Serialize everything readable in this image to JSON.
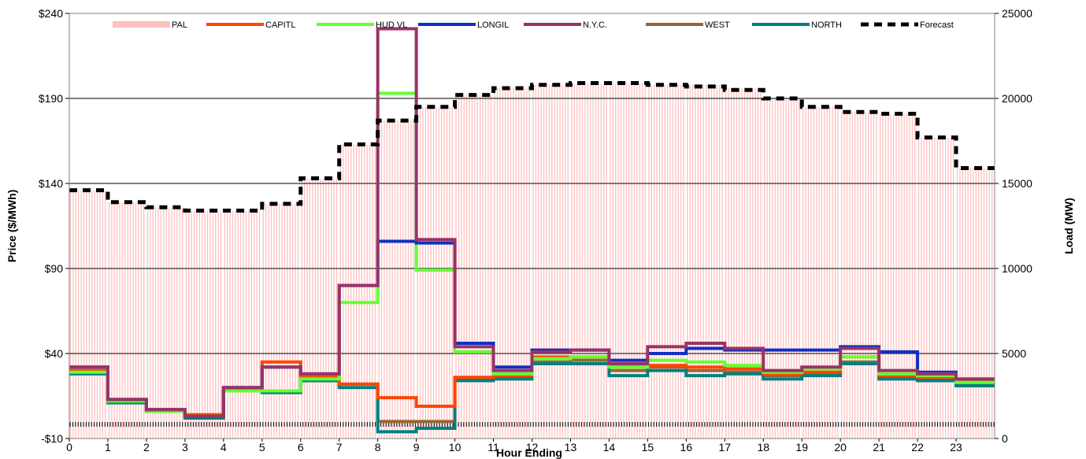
{
  "chart_data": {
    "type": "line",
    "xlabel": "Hour Ending",
    "ylabel_left": "Price ($/MWh)",
    "ylabel_right": "Load (MW)",
    "ylim_left": [
      -10,
      240
    ],
    "ylim_right": [
      0,
      25000
    ],
    "yticks_left": [
      "$240",
      "$190",
      "$140",
      "$90",
      "$40",
      "-$10"
    ],
    "yticks_right": [
      "25000",
      "20000",
      "15000",
      "10000",
      "5000",
      "0"
    ],
    "x_tick_labels": [
      "0",
      "1",
      "2",
      "3",
      "4",
      "5",
      "6",
      "7",
      "8",
      "9",
      "10",
      "11",
      "12",
      "13",
      "14",
      "15",
      "16",
      "17",
      "18",
      "19",
      "20",
      "21",
      "22",
      "23"
    ],
    "grid": "horizontal",
    "legend_position": "top",
    "hours": [
      0,
      1,
      2,
      3,
      4,
      5,
      6,
      7,
      8,
      9,
      10,
      11,
      12,
      13,
      14,
      15,
      16,
      17,
      18,
      19,
      20,
      21,
      22,
      23
    ],
    "series": [
      {
        "name": "PAL",
        "axis": "right",
        "style": "bars",
        "color": "#ffc0c0",
        "values": [
          14600,
          13900,
          13600,
          13400,
          13400,
          13800,
          15300,
          17300,
          18700,
          19500,
          20200,
          20600,
          20800,
          20900,
          20900,
          20800,
          20800,
          20600,
          20000,
          19500,
          19200,
          19100,
          17700,
          15900
        ]
      },
      {
        "name": "CAPITL",
        "axis": "left",
        "color": "#ff4500",
        "values": [
          30,
          13,
          7,
          4,
          19,
          35,
          26,
          22,
          14,
          9,
          26,
          27,
          38,
          38,
          33,
          33,
          32,
          31,
          28,
          29,
          38,
          27,
          26,
          24
        ]
      },
      {
        "name": "HUD VL",
        "axis": "left",
        "color": "#66ff33",
        "values": [
          29,
          12,
          6,
          3,
          18,
          18,
          25,
          70,
          193,
          89,
          41,
          28,
          37,
          38,
          32,
          36,
          35,
          33,
          29,
          31,
          38,
          28,
          27,
          23
        ]
      },
      {
        "name": "LONGIL",
        "axis": "left",
        "color": "#1030c0",
        "values": [
          32,
          13,
          7,
          3,
          20,
          32,
          28,
          80,
          106,
          105,
          46,
          32,
          42,
          42,
          36,
          40,
          43,
          42,
          42,
          42,
          44,
          41,
          29,
          25
        ]
      },
      {
        "name": "N.Y.C.",
        "axis": "left",
        "color": "#993366",
        "values": [
          32,
          13,
          7,
          3,
          20,
          32,
          28,
          80,
          231,
          107,
          44,
          30,
          41,
          42,
          34,
          44,
          46,
          43,
          30,
          32,
          43,
          30,
          28,
          25
        ]
      },
      {
        "name": "WEST",
        "axis": "left",
        "color": "#996633",
        "values": [
          30,
          12,
          6,
          3,
          19,
          18,
          26,
          22,
          0,
          0,
          25,
          26,
          35,
          36,
          30,
          32,
          30,
          29,
          27,
          28,
          35,
          26,
          25,
          22
        ]
      },
      {
        "name": "NORTH",
        "axis": "left",
        "color": "#008080",
        "values": [
          28,
          11,
          6,
          2,
          18,
          17,
          24,
          20,
          -6,
          -4,
          24,
          25,
          34,
          34,
          27,
          30,
          27,
          28,
          25,
          27,
          34,
          25,
          24,
          21
        ]
      },
      {
        "name": "Forecast",
        "axis": "right",
        "color": "#000000",
        "style": "dashed",
        "values": [
          14600,
          13900,
          13600,
          13400,
          13400,
          13800,
          15300,
          17300,
          18700,
          19500,
          20200,
          20600,
          20800,
          20900,
          20900,
          20800,
          20700,
          20500,
          20000,
          19500,
          19200,
          19100,
          17700,
          15900
        ]
      }
    ]
  }
}
